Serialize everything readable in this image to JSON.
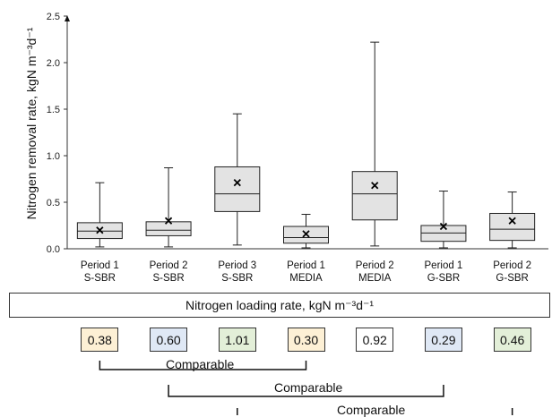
{
  "chart_data": {
    "type": "box",
    "ylabel": "Nitrogen removal rate, kgN m⁻³d⁻¹",
    "ylim": [
      0,
      2.5
    ],
    "yticks": [
      "0.0",
      "0.5",
      "1.0",
      "1.5",
      "2.0",
      "2.5"
    ],
    "categories": [
      {
        "line1": "Period 1",
        "line2": "S-SBR"
      },
      {
        "line1": "Period 2",
        "line2": "S-SBR"
      },
      {
        "line1": "Period 3",
        "line2": "S-SBR"
      },
      {
        "line1": "Period 1",
        "line2": "MEDIA"
      },
      {
        "line1": "Period 2",
        "line2": "MEDIA"
      },
      {
        "line1": "Period 1",
        "line2": "G-SBR"
      },
      {
        "line1": "Period 2",
        "line2": "G-SBR"
      }
    ],
    "boxes": [
      {
        "min": 0.02,
        "q1": 0.11,
        "median": 0.19,
        "q3": 0.28,
        "max": 0.71,
        "mean": 0.2
      },
      {
        "min": 0.02,
        "q1": 0.14,
        "median": 0.2,
        "q3": 0.29,
        "max": 0.87,
        "mean": 0.3
      },
      {
        "min": 0.04,
        "q1": 0.4,
        "median": 0.59,
        "q3": 0.88,
        "max": 1.45,
        "mean": 0.71
      },
      {
        "min": 0.01,
        "q1": 0.06,
        "median": 0.12,
        "q3": 0.24,
        "max": 0.37,
        "mean": 0.16
      },
      {
        "min": 0.03,
        "q1": 0.31,
        "median": 0.59,
        "q3": 0.83,
        "max": 2.22,
        "mean": 0.68
      },
      {
        "min": 0.01,
        "q1": 0.08,
        "median": 0.17,
        "q3": 0.25,
        "max": 0.62,
        "mean": 0.24
      },
      {
        "min": 0.01,
        "q1": 0.09,
        "median": 0.21,
        "q3": 0.38,
        "max": 0.61,
        "mean": 0.3
      }
    ]
  },
  "loading": {
    "title": "Nitrogen loading rate, kgN m⁻³d⁻¹",
    "values": [
      "0.38",
      "0.60",
      "1.01",
      "0.30",
      "0.92",
      "0.29",
      "0.46"
    ],
    "colors": [
      "#fdf0d5",
      "#dfe8f5",
      "#e3efd8",
      "#fdf0d5",
      "#ffffff",
      "#dfe8f5",
      "#e3efd8"
    ]
  },
  "comparisons": [
    "Comparable",
    "Comparable",
    "Comparable"
  ]
}
